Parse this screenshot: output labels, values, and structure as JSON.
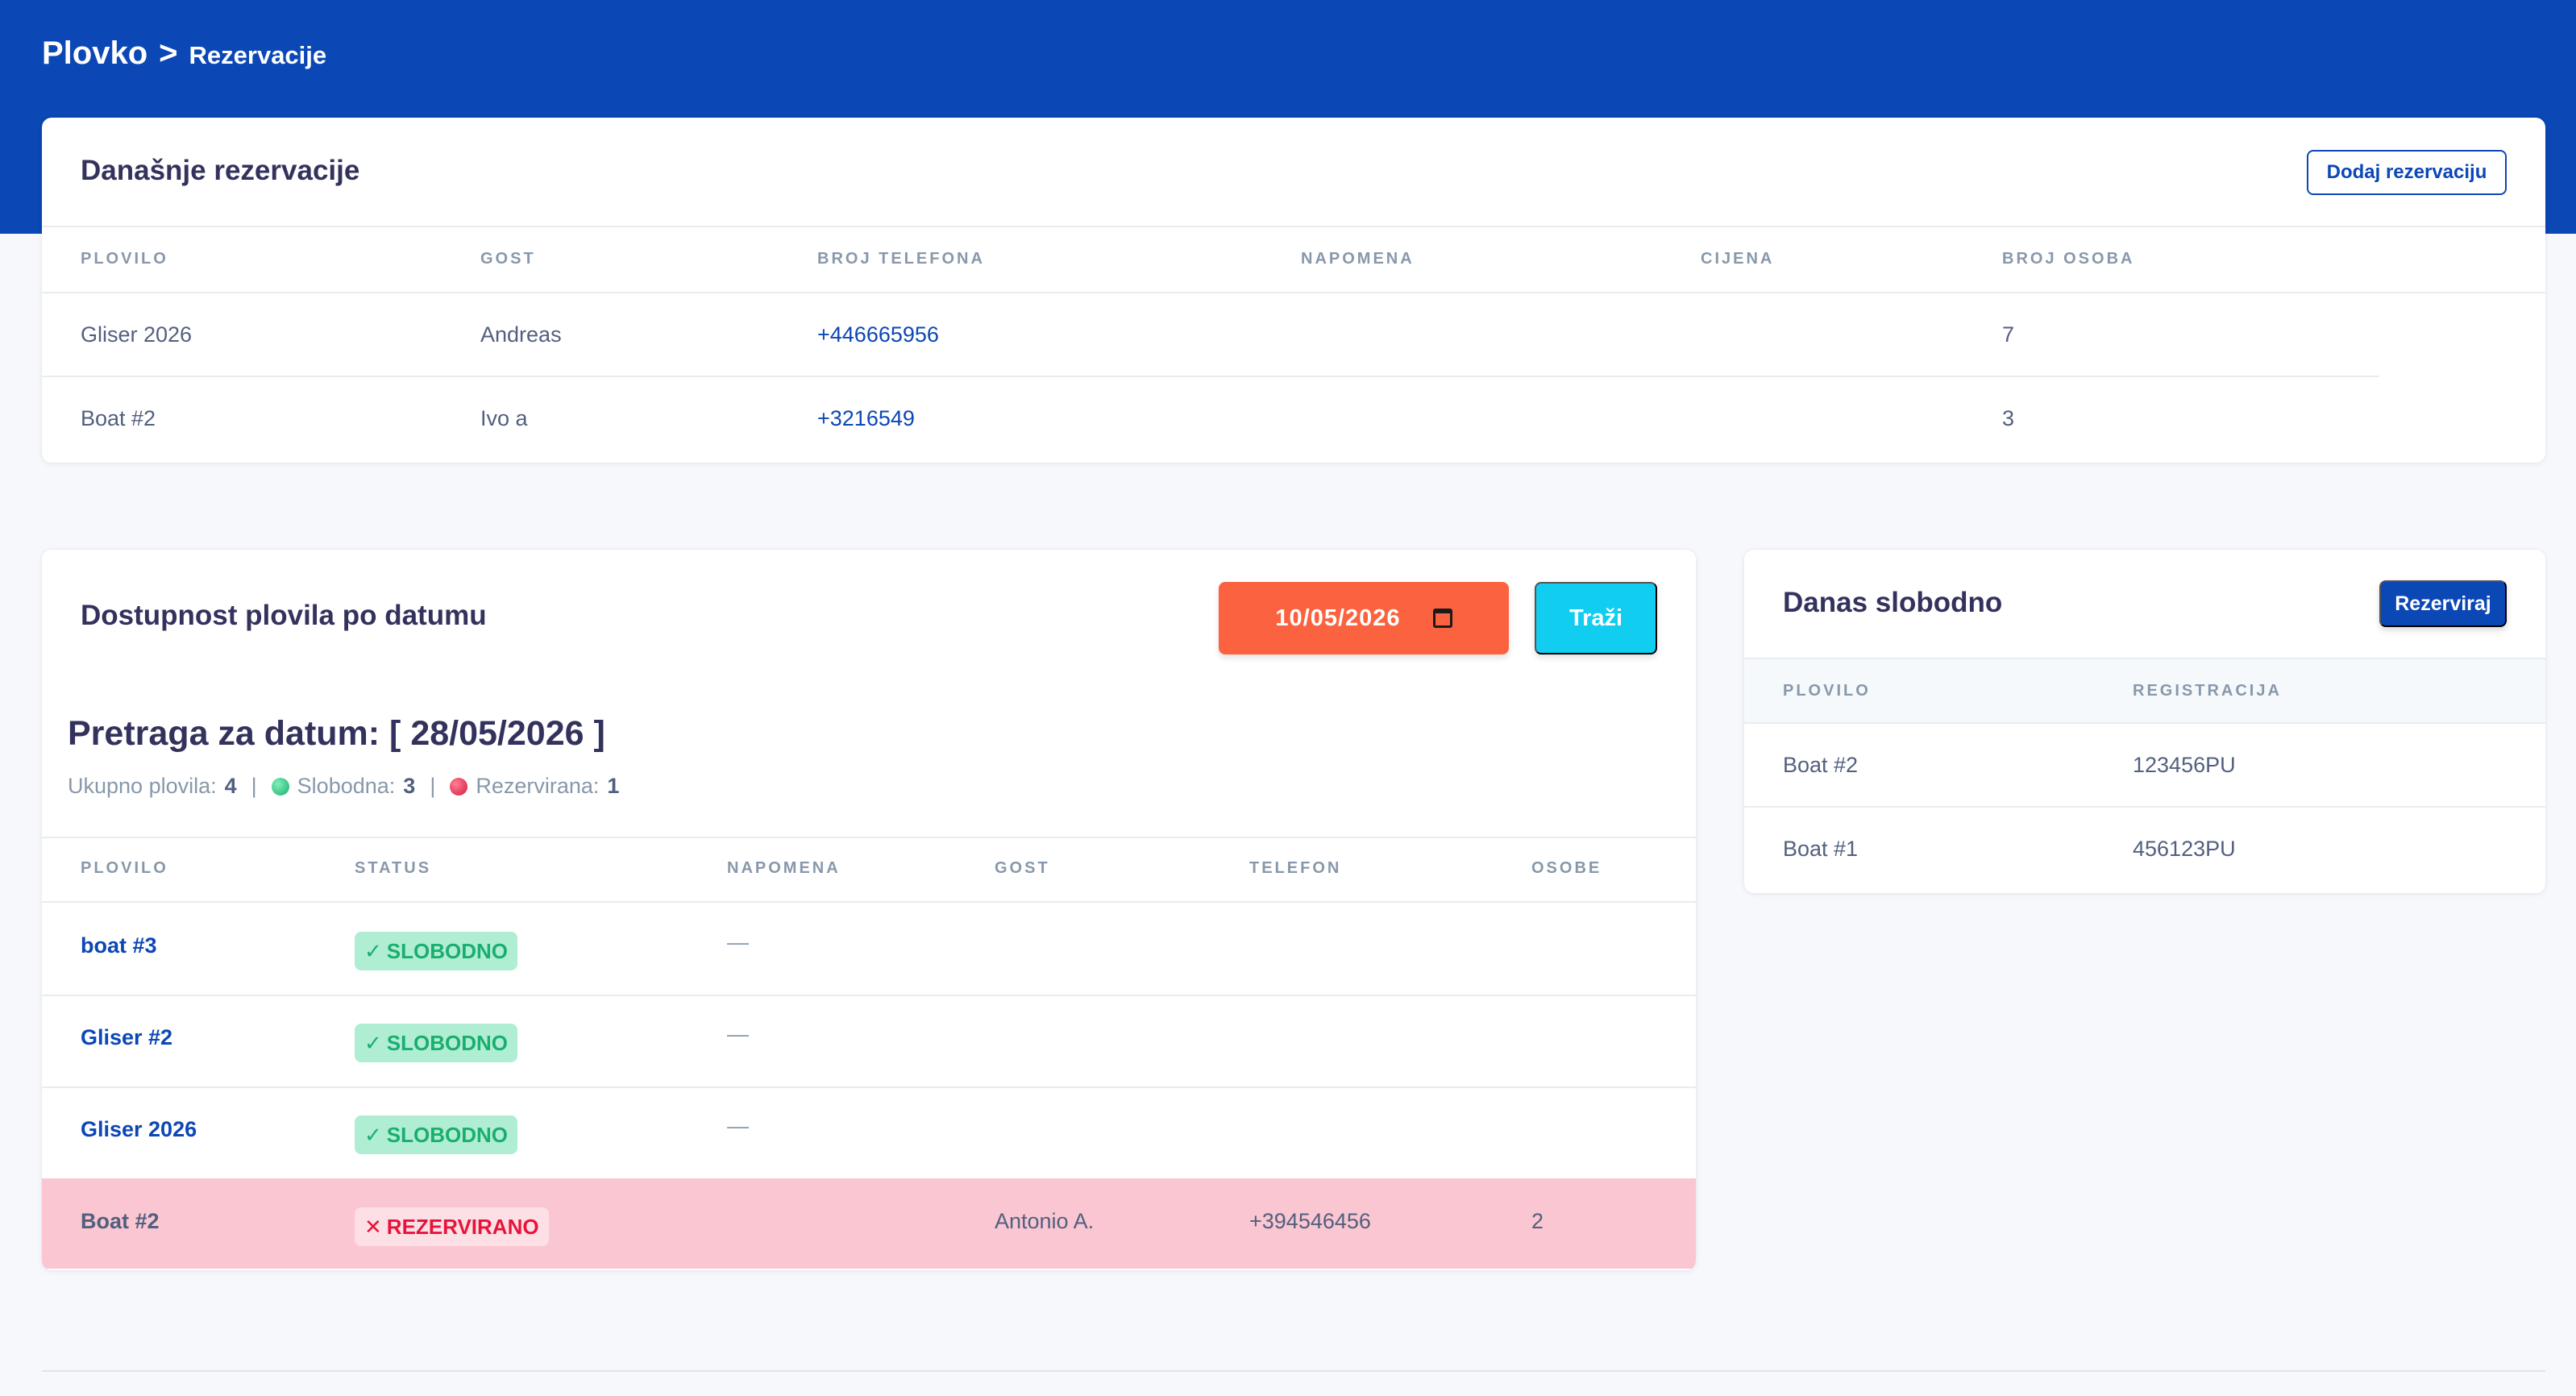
{
  "breadcrumb": {
    "app": "Plovko",
    "separator": ">",
    "page": "Rezervacije"
  },
  "today_reservations": {
    "title": "Današnje rezervacije",
    "add_button": "Dodaj rezervaciju",
    "columns": [
      "PLOVILO",
      "GOST",
      "BROJ TELEFONA",
      "NAPOMENA",
      "CIJENA",
      "BROJ OSOBA"
    ],
    "rows": [
      {
        "vessel": "Gliser 2026",
        "guest": "Andreas",
        "phone": "+446665956",
        "note": "",
        "price": "",
        "persons": "7"
      },
      {
        "vessel": "Boat #2",
        "guest": "Ivo a",
        "phone": "+3216549",
        "note": "",
        "price": "",
        "persons": "3"
      }
    ]
  },
  "availability": {
    "title": "Dostupnost plovila po datumu",
    "date_value": "10/05/2026",
    "search_button": "Traži",
    "search_heading": "Pretraga za datum: [ 28/05/2026 ]",
    "summary": {
      "total_label": "Ukupno plovila:",
      "total": "4",
      "free_label": "Slobodna:",
      "free": "3",
      "reserved_label": "Rezervirana:",
      "reserved": "1"
    },
    "columns": [
      "PLOVILO",
      "STATUS",
      "NAPOMENA",
      "GOST",
      "TELEFON",
      "OSOBE"
    ],
    "rows": [
      {
        "vessel": "boat #3",
        "status": "SLOBODNO",
        "status_icon": "✓",
        "note": "—",
        "guest": "",
        "phone": "",
        "persons": ""
      },
      {
        "vessel": "Gliser #2",
        "status": "SLOBODNO",
        "status_icon": "✓",
        "note": "—",
        "guest": "",
        "phone": "",
        "persons": ""
      },
      {
        "vessel": "Gliser 2026",
        "status": "SLOBODNO",
        "status_icon": "✓",
        "note": "—",
        "guest": "",
        "phone": "",
        "persons": ""
      },
      {
        "vessel": "Boat #2",
        "status": "REZERVIRANO",
        "status_icon": "✕",
        "note": "",
        "guest": "Antonio A.",
        "phone": "+394546456",
        "persons": "2"
      }
    ]
  },
  "free_today": {
    "title": "Danas slobodno",
    "reserve_button": "Rezerviraj",
    "columns": [
      "PLOVILO",
      "REGISTRACIJA"
    ],
    "rows": [
      {
        "vessel": "Boat #2",
        "registration": "123456PU"
      },
      {
        "vessel": "Boat #1",
        "registration": "456123PU"
      }
    ]
  },
  "colors": {
    "brand": "#0b47b5",
    "date_input": "#fb6340",
    "search": "#11cdef",
    "free_badge": "#b0eed3",
    "reserved_row": "#f9c6d1",
    "reserved_text": "#e8133b"
  },
  "icons": {
    "calendar": "calendar-icon",
    "free": "check-icon",
    "reserved": "x-icon"
  }
}
